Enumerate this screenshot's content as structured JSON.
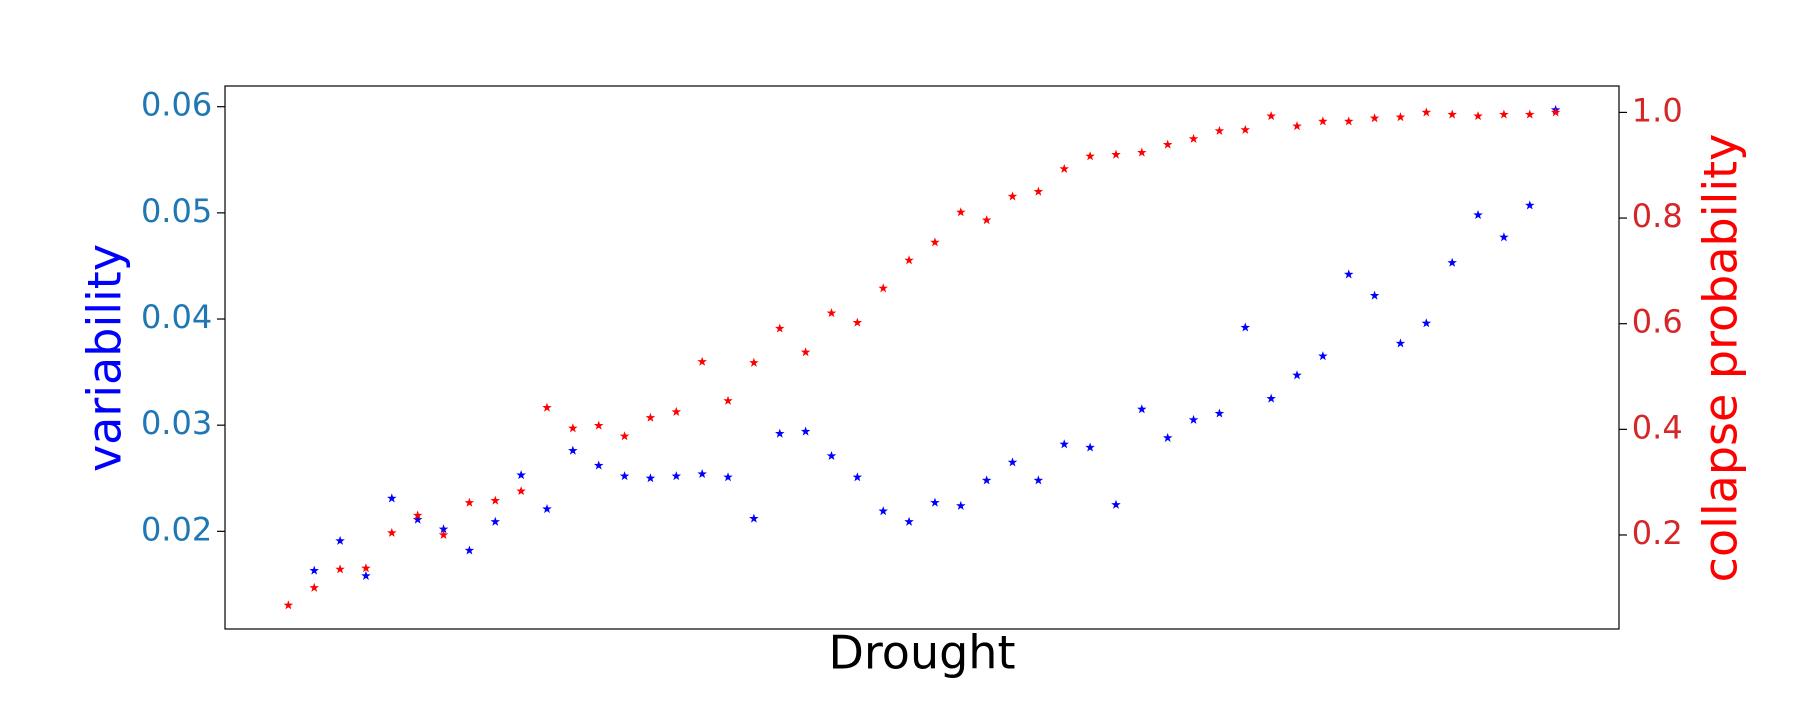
{
  "chart_data": {
    "type": "scatter",
    "x_label": "Drought",
    "y_label": "variability",
    "y2_label": "collapse probability",
    "y_label_color": "blue",
    "y2_label_color": "red",
    "ytick_color": "#1f77b4",
    "y2tick_color": "#d62728",
    "marker": "star",
    "x": [
      0,
      1,
      2,
      3,
      4,
      5,
      6,
      7,
      8,
      9,
      10,
      11,
      12,
      13,
      14,
      15,
      16,
      17,
      18,
      19,
      20,
      21,
      22,
      23,
      24,
      25,
      26,
      27,
      28,
      29,
      30,
      31,
      32,
      33,
      34,
      35,
      36,
      37,
      38,
      39,
      40,
      41,
      42,
      43,
      44,
      45,
      46,
      47,
      48,
      49
    ],
    "xlim": [
      -2.45,
      51.45
    ],
    "ylim": [
      0.0108,
      0.06195
    ],
    "yticks": [
      0.02,
      0.03,
      0.04,
      0.05,
      0.06
    ],
    "y2lim": [
      0.022,
      1.05
    ],
    "y2ticks": [
      0.2,
      0.4,
      0.6,
      0.8,
      {
        "value": 1.0,
        "label": "1.0"
      }
    ],
    "series": [
      {
        "name": "variability",
        "color": "blue",
        "values": [
          null,
          0.0163,
          0.0191,
          0.0158,
          0.0231,
          0.0211,
          0.0202,
          0.0182,
          0.0209,
          0.0253,
          0.0221,
          0.0276,
          0.0262,
          0.0252,
          0.025,
          0.0252,
          0.0254,
          0.0251,
          0.0212,
          0.0292,
          0.0294,
          0.0271,
          0.0251,
          0.0219,
          0.0209,
          0.0227,
          0.0224,
          0.0248,
          0.0265,
          0.0248,
          0.0282,
          0.0279,
          0.0225,
          0.0315,
          0.0288,
          0.0305,
          0.0311,
          0.0392,
          0.0325,
          0.0347,
          0.0365,
          0.0442,
          0.0422,
          0.0377,
          0.0396,
          0.0453,
          0.0498,
          0.0477,
          0.0507,
          0.0597
        ]
      },
      {
        "name": "collapse probability",
        "color": "red",
        "axis": "y2",
        "values": [
          0.067,
          0.1,
          0.135,
          0.137,
          0.204,
          0.237,
          0.2,
          0.261,
          0.265,
          0.283,
          0.441,
          0.402,
          0.407,
          0.387,
          0.422,
          0.433,
          0.528,
          0.454,
          0.526,
          0.591,
          0.546,
          0.62,
          0.602,
          0.667,
          0.72,
          0.754,
          0.811,
          0.796,
          0.841,
          0.85,
          0.893,
          0.917,
          0.92,
          0.924,
          0.939,
          0.95,
          0.965,
          0.967,
          0.993,
          0.974,
          0.983,
          0.983,
          0.989,
          0.991,
          1.0,
          0.996,
          0.993,
          0.996,
          0.996,
          1.0
        ]
      }
    ]
  }
}
